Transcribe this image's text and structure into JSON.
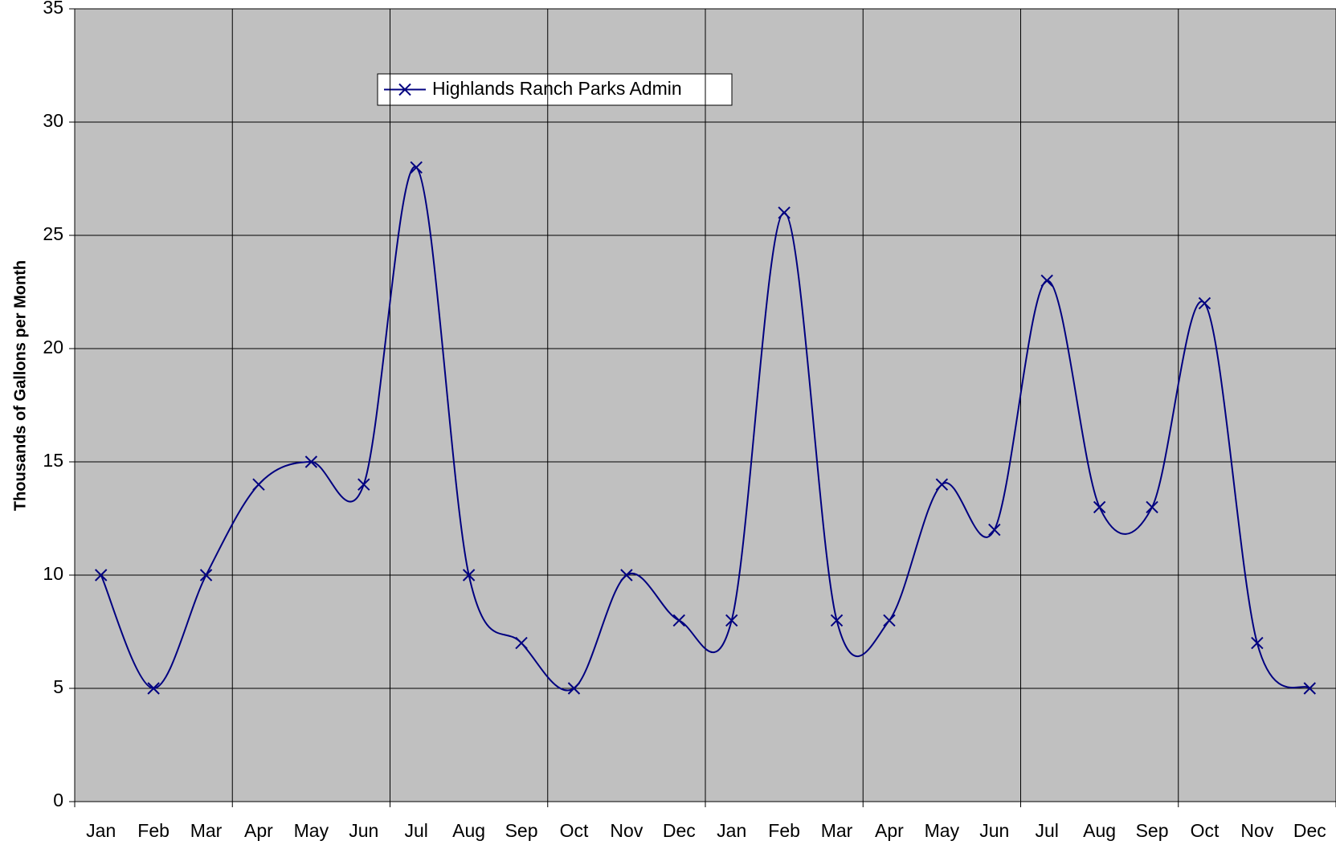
{
  "chart_data": {
    "type": "line",
    "y_label": "Thousands of Gallons per Month",
    "categories": [
      "Jan",
      "Feb",
      "Mar",
      "Apr",
      "May",
      "Jun",
      "Jul",
      "Aug",
      "Sep",
      "Oct",
      "Nov",
      "Dec",
      "Jan",
      "Feb",
      "Mar",
      "Apr",
      "May",
      "Jun",
      "Jul",
      "Aug",
      "Sep",
      "Oct",
      "Nov",
      "Dec"
    ],
    "series": [
      {
        "name": "Highlands Ranch Parks Admin",
        "color": "#000080",
        "values": [
          10,
          5,
          10,
          14,
          15,
          14,
          28,
          10,
          7,
          5,
          10,
          8,
          8,
          26,
          8,
          8,
          14,
          12,
          23,
          13,
          13,
          22,
          7,
          5
        ]
      }
    ],
    "ylim": [
      0,
      35
    ],
    "yticks": [
      0,
      5,
      10,
      15,
      20,
      25,
      30,
      35
    ],
    "grid": true,
    "smooth": true
  }
}
